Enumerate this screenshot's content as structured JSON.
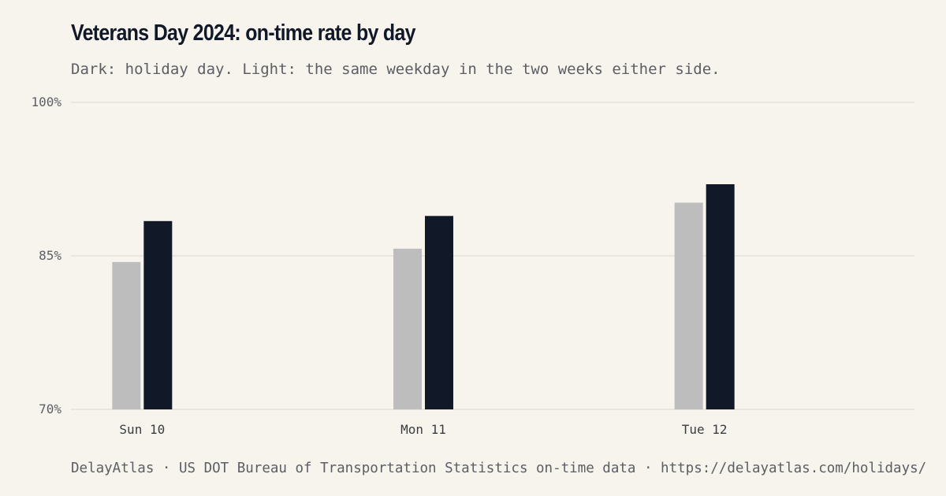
{
  "title": "Veterans Day 2024: on-time rate by day",
  "subtitle": "Dark: holiday day. Light: the same weekday in the two weeks either side.",
  "footer": "DelayAtlas · US DOT Bureau of Transportation Statistics on-time data · https://delayatlas.com/holidays/",
  "colors": {
    "background": "#f7f4ee",
    "holiday": "#111827",
    "comparison": "#bdbdbd",
    "grid": "#e4e1da"
  },
  "chart_data": {
    "type": "bar",
    "title": "Veterans Day 2024: on-time rate by day",
    "subtitle": "Dark: holiday day. Light: the same weekday in the two weeks either side.",
    "categories": [
      "Sun 10",
      "Mon 11",
      "Tue 12"
    ],
    "series": [
      {
        "key": "comparison",
        "color": "#bdbdbd",
        "values": [
          84.4,
          85.7,
          90.2
        ]
      },
      {
        "key": "holiday",
        "color": "#111827",
        "values": [
          88.4,
          88.9,
          92.0
        ]
      }
    ],
    "ylim": [
      70,
      100
    ],
    "yticks": [
      {
        "value": 70,
        "label": "70%"
      },
      {
        "value": 85,
        "label": "85%"
      },
      {
        "value": 100,
        "label": "100%"
      }
    ],
    "grid": true,
    "legend": "none"
  }
}
